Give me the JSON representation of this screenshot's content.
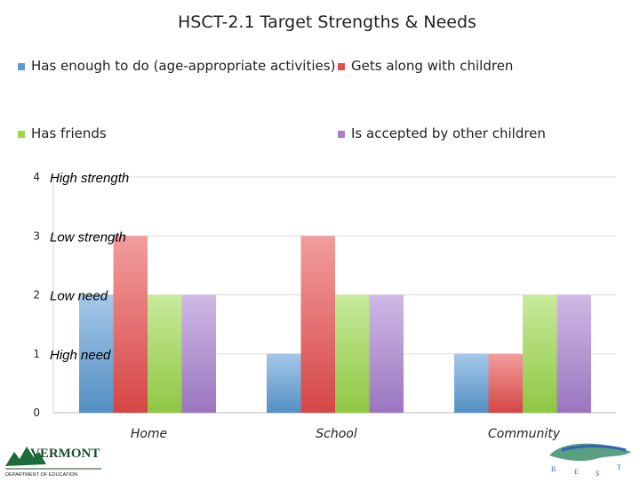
{
  "chart_data": {
    "type": "bar",
    "title": "HSCT-2.1 Target Strengths & Needs",
    "categories": [
      "Home",
      "School",
      "Community"
    ],
    "series": [
      {
        "name": "Has enough to do (age-appropriate activities)",
        "values": [
          2,
          1,
          1
        ],
        "color": "#5b9bd5"
      },
      {
        "name": "Gets along with children",
        "values": [
          3,
          3,
          1
        ],
        "color": "#e84c4c"
      },
      {
        "name": "Has friends",
        "values": [
          2,
          2,
          2
        ],
        "color": "#9bd84a"
      },
      {
        "name": "Is accepted by other children",
        "values": [
          2,
          2,
          2
        ],
        "color": "#a77fd0"
      }
    ],
    "ylim": [
      0,
      4
    ],
    "yticks": [
      0,
      1,
      2,
      3,
      4
    ],
    "grid": true,
    "legend_position": "top",
    "annotations": [
      {
        "text": "High strength",
        "y": 4
      },
      {
        "text": "Low strength",
        "y": 3
      },
      {
        "text": "Low need",
        "y": 2
      },
      {
        "text": "High need",
        "y": 1
      }
    ]
  },
  "logos": {
    "left_name": "VERMONT",
    "left_sub": "DEPARTMENT OF EDUCATION",
    "right_letters": [
      "B",
      "E",
      "S",
      "T"
    ]
  }
}
